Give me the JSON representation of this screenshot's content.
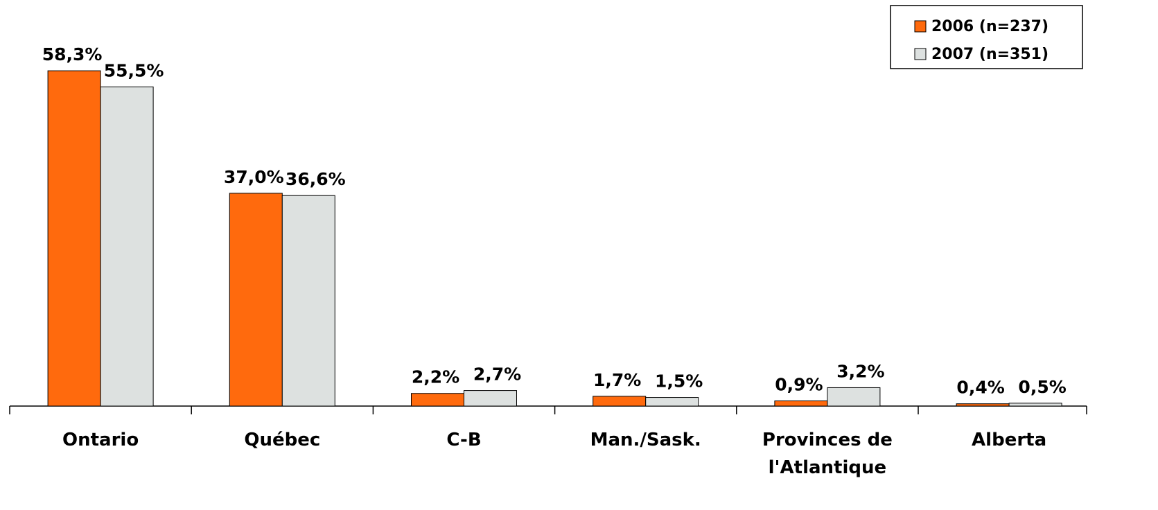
{
  "chart_data": {
    "type": "bar",
    "categories": [
      "Ontario",
      "Québec",
      "C-B",
      "Man./Sask.",
      "Provinces de\nl'Atlantique",
      "Alberta"
    ],
    "series": [
      {
        "name": "2006 (n=237)",
        "color": "#ff6a0d",
        "values": [
          58.3,
          37.0,
          2.2,
          1.7,
          0.9,
          0.4
        ],
        "value_labels": [
          "58,3%",
          "37,0%",
          "2,2%",
          "1,7%",
          "0,9%",
          "0,4%"
        ]
      },
      {
        "name": "2007 (n=351)",
        "color": "#dde1e0",
        "values": [
          55.5,
          36.6,
          2.7,
          1.5,
          3.2,
          0.5
        ],
        "value_labels": [
          "55,5%",
          "36,6%",
          "2,7%",
          "1,5%",
          "3,2%",
          "0,5%"
        ]
      }
    ],
    "legend": "top-right"
  }
}
